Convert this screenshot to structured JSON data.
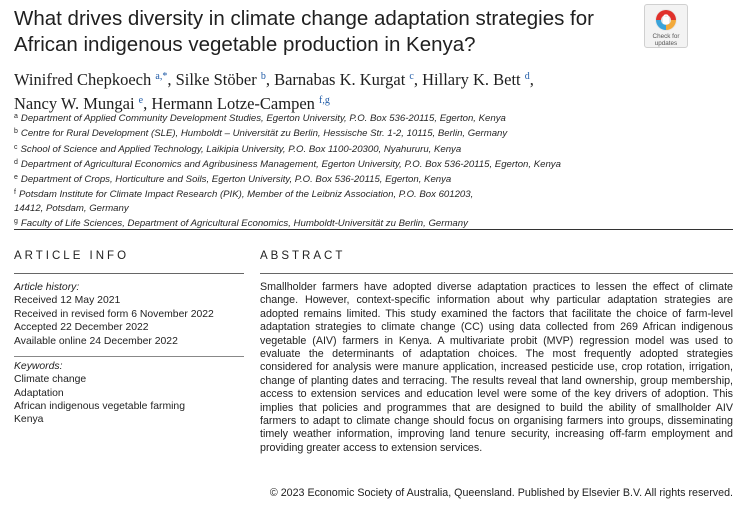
{
  "title": "What drives diversity in climate change adaptation strategies for African indigenous vegetable production in Kenya?",
  "badge": {
    "line1": "Check for",
    "line2": "updates"
  },
  "authors": [
    {
      "name": "Winifred Chepkoech",
      "sup": "a,*",
      "sep": ", "
    },
    {
      "name": "Silke Stöber",
      "sup": "b",
      "sep": ", "
    },
    {
      "name": "Barnabas K. Kurgat",
      "sup": "c",
      "sep": ", "
    },
    {
      "name": "Hillary K. Bett",
      "sup": "d",
      "sep": ", "
    },
    {
      "name": "Nancy W. Mungai",
      "sup": "e",
      "sep": ", "
    },
    {
      "name": "Hermann Lotze-Campen",
      "sup": "f,g",
      "sep": ""
    }
  ],
  "affiliations": [
    {
      "key": "a",
      "text": "Department of Applied Community Development Studies, Egerton University, P.O. Box 536-20115, Egerton, Kenya"
    },
    {
      "key": "b",
      "text": "Centre for Rural Development (SLE), Humboldt – Universität zu Berlin, Hessische Str. 1-2, 10115, Berlin, Germany"
    },
    {
      "key": "c",
      "text": "School of Science and Applied Technology, Laikipia University, P.O. Box 1100-20300, Nyahururu, Kenya"
    },
    {
      "key": "d",
      "text": "Department of Agricultural Economics and Agribusiness Management, Egerton University, P.O. Box 536-20115, Egerton, Kenya"
    },
    {
      "key": "e",
      "text": "Department of Crops, Horticulture and Soils, Egerton University, P.O. Box 536-20115, Egerton, Kenya"
    },
    {
      "key": "f",
      "text": "Potsdam Institute for Climate Impact Research (PIK), Member of the Leibniz Association, P.O. Box 601203, 14412, Potsdam, Germany"
    },
    {
      "key": "g",
      "text": "Faculty of Life Sciences, Department of Agricultural Economics, Humboldt-Universität zu Berlin, Germany"
    }
  ],
  "article_info": {
    "heading": "ARTICLE INFO",
    "history_label": "Article history:",
    "history": [
      "Received 12 May 2021",
      "Received in revised form 6 November 2022",
      "Accepted 22 December 2022",
      "Available online 24 December 2022"
    ],
    "keywords_label": "Keywords:",
    "keywords": [
      "Climate change",
      "Adaptation",
      "African indigenous vegetable farming",
      "Kenya"
    ]
  },
  "abstract": {
    "heading": "ABSTRACT",
    "text": "Smallholder farmers have adopted diverse adaptation practices to lessen the effect of climate change. However, context-specific information about why particular adaptation strategies are adopted remains limited. This study examined the factors that facilitate the choice of farm-level adaptation strategies to climate change (CC) using data collected from 269 African indigenous vegetable (AIV) farmers in Kenya. A multivariate probit (MVP) regression model was used to evaluate the determinants of adaptation choices. The most frequently adopted strategies considered for analysis were manure application, increased pesticide use, crop rotation, irrigation, change of planting dates and terracing. The results reveal that land ownership, group membership, access to extension services and education level were some of the key drivers of adoption. This implies that policies and programmes that are designed to build the ability of smallholder AIV farmers to adapt to climate change should focus on organising farmers into groups, disseminating timely weather information, improving land tenure security, increasing off-farm employment and providing greater access to extension services.",
    "copyright": "© 2023 Economic Society of Australia, Queensland. Published by Elsevier B.V. All rights reserved."
  },
  "colors": {
    "link_blue": "#1f5aa6",
    "text": "#1a1a1a",
    "rule": "#333333"
  }
}
